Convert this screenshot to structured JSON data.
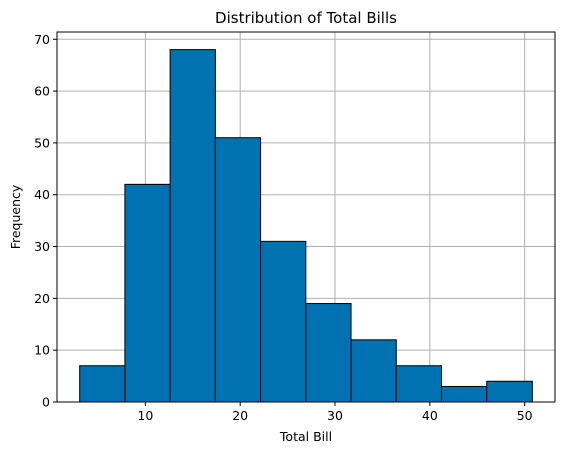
{
  "chart_data": {
    "type": "bar",
    "title": "Distribution of Total Bills",
    "xlabel": "Total Bill",
    "ylabel": "Frequency",
    "bin_edges": [
      3.07,
      7.84,
      12.61,
      17.38,
      22.15,
      26.92,
      31.69,
      36.46,
      41.23,
      46.0,
      50.81
    ],
    "values": [
      7,
      42,
      68,
      51,
      31,
      19,
      12,
      7,
      3,
      4
    ],
    "xlim": [
      0.68,
      53.2
    ],
    "ylim": [
      0,
      71.4
    ],
    "xticks": [
      10,
      20,
      30,
      40,
      50
    ],
    "yticks": [
      0,
      10,
      20,
      30,
      40,
      50,
      60,
      70
    ],
    "grid": true,
    "bar_color": "#0072b2",
    "edge_color": "#000000",
    "grid_color": "#b0b0b0"
  }
}
